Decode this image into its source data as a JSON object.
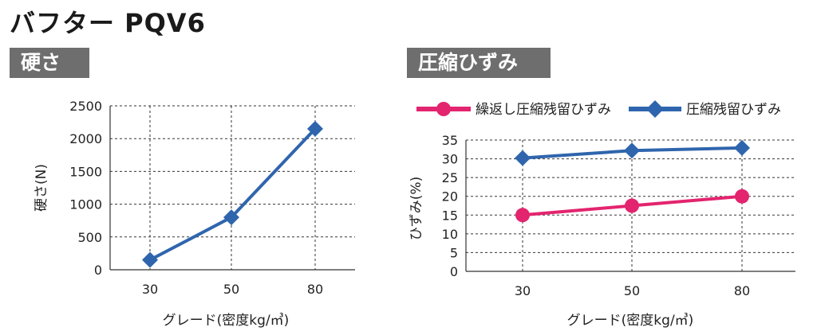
{
  "page": {
    "title": "バフター PQV6"
  },
  "sections": {
    "left_label": "硬さ",
    "right_label": "圧縮ひずみ"
  },
  "colors": {
    "blue": "#2f65ad",
    "pink": "#e3246e",
    "grid": "#333333",
    "label_bg": "#6e6e6e"
  },
  "chart_data": [
    {
      "type": "line",
      "title": "",
      "xlabel": "グレード(密度kg/㎥)",
      "ylabel": "硬さ(N)",
      "categories": [
        "30",
        "50",
        "80"
      ],
      "ylim": [
        0,
        2500
      ],
      "yticks": [
        "0",
        "500",
        "1000",
        "1500",
        "2000",
        "2500"
      ],
      "grid": true,
      "series": [
        {
          "values": [
            150,
            800,
            2150
          ],
          "color": "#2f65ad",
          "marker": "diamond"
        }
      ]
    },
    {
      "type": "line",
      "title": "",
      "xlabel": "グレード(密度kg/㎥)",
      "ylabel": "ひずみ(%)",
      "categories": [
        "30",
        "50",
        "80"
      ],
      "ylim": [
        0,
        35
      ],
      "yticks": [
        "0",
        "5",
        "10",
        "15",
        "20",
        "25",
        "30",
        "35"
      ],
      "grid": true,
      "legend": "top",
      "series": [
        {
          "name": "繰返し圧縮残留ひずみ",
          "values": [
            15,
            17.5,
            20
          ],
          "color": "#e3246e",
          "marker": "circle"
        },
        {
          "name": "圧縮残留ひずみ",
          "values": [
            30.2,
            32.2,
            32.9
          ],
          "color": "#2f65ad",
          "marker": "diamond"
        }
      ]
    }
  ]
}
